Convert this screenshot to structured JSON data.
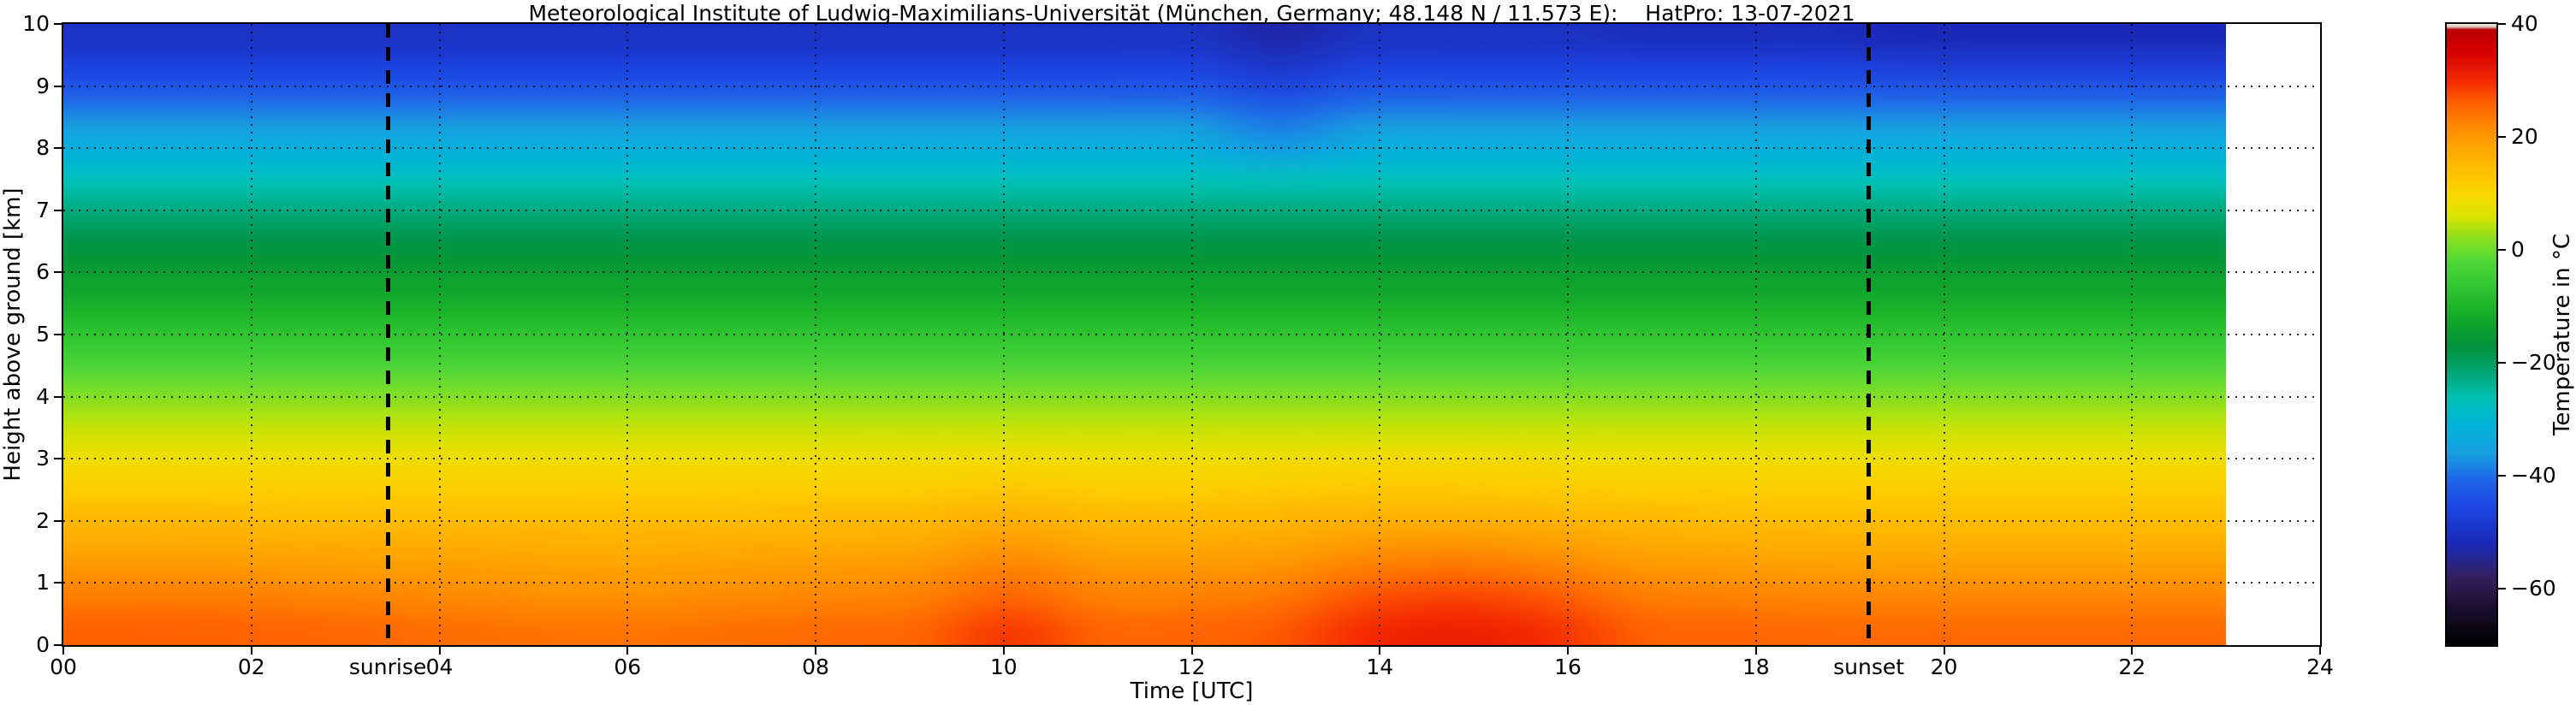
{
  "chart_data": {
    "type": "heatmap",
    "title": "Meteorological Institute of Ludwig-Maximilians-Universität (München, Germany; 48.148 N / 11.573 E):    HatPro: 13-07-2021",
    "xlabel": "Time [UTC]",
    "ylabel": "Height above ground [km]",
    "colorbar_label": "Temperature in °C",
    "xlim": [
      0,
      24
    ],
    "ylim": [
      0,
      10
    ],
    "grid": true,
    "x_tick_values": [
      0,
      2,
      4,
      6,
      8,
      10,
      12,
      14,
      16,
      18,
      20,
      22,
      24
    ],
    "x_tick_labels": [
      "00",
      "02",
      "04",
      "06",
      "08",
      "10",
      "12",
      "14",
      "16",
      "18",
      "20",
      "22",
      "24"
    ],
    "y_tick_values": [
      0,
      1,
      2,
      3,
      4,
      5,
      6,
      7,
      8,
      9,
      10
    ],
    "y_tick_labels": [
      "0",
      "1",
      "2",
      "3",
      "4",
      "5",
      "6",
      "7",
      "8",
      "9",
      "10"
    ],
    "colorbar": {
      "range": [
        -70,
        40
      ],
      "tick_values": [
        40,
        20,
        0,
        -20,
        -40,
        -60
      ],
      "tick_labels": [
        "40",
        "20",
        "0",
        "−20",
        "−40",
        "−60"
      ]
    },
    "annotations": [
      {
        "label": "sunrise",
        "time_utc": 3.45
      },
      {
        "label": "sunset",
        "time_utc": 19.2
      }
    ],
    "times_utc": [
      0,
      1,
      2,
      3,
      4,
      5,
      6,
      7,
      8,
      9,
      10,
      11,
      12,
      13,
      14,
      15,
      16,
      17,
      18,
      19,
      20,
      21,
      22,
      23
    ],
    "heights_km": [
      0,
      0.5,
      1,
      1.5,
      2,
      2.5,
      3,
      3.5,
      4,
      4.5,
      5,
      5.5,
      6,
      6.5,
      7,
      7.5,
      8,
      8.5,
      9,
      9.5,
      10
    ],
    "temperature_c": [
      [
        26,
        26,
        25.5,
        25,
        24.5,
        24,
        24,
        24.5,
        25,
        25.5,
        29,
        25.5,
        25.5,
        26.5,
        30,
        31,
        29.5,
        26,
        25.5,
        25,
        25,
        25,
        25,
        25
      ],
      [
        23.5,
        23.5,
        23,
        22.5,
        22,
        21.5,
        21.5,
        22,
        22.5,
        23,
        26,
        23,
        23,
        24,
        27.5,
        28.5,
        27,
        23.5,
        23,
        22.5,
        22.5,
        22.5,
        22.5,
        22.5
      ],
      [
        20.5,
        20.5,
        20,
        19.5,
        19.5,
        19,
        19,
        19.5,
        20,
        20.5,
        23,
        20.5,
        20.5,
        21,
        23.5,
        24.5,
        23,
        20.5,
        20,
        19.5,
        19.5,
        19.5,
        19.5,
        19.5
      ],
      [
        17.5,
        17.5,
        17,
        17,
        17,
        16.5,
        16.5,
        17,
        17,
        17.5,
        19.5,
        17.5,
        17.5,
        18,
        19.5,
        20,
        19,
        17.5,
        17,
        16.5,
        16.5,
        16.5,
        16.5,
        16.5
      ],
      [
        14.5,
        14.5,
        14,
        14,
        14,
        14,
        14,
        14,
        14.5,
        14.5,
        16,
        14.5,
        14.5,
        15,
        15.5,
        15.5,
        15,
        14.5,
        14,
        14,
        14,
        14,
        14,
        14
      ],
      [
        11,
        11,
        11,
        11,
        11,
        11,
        11,
        11,
        11,
        11,
        12,
        11,
        11,
        11.5,
        12,
        12,
        11.5,
        11,
        11,
        11,
        11,
        11,
        11,
        11
      ],
      [
        8,
        8,
        8,
        8,
        8,
        8,
        8,
        8,
        8,
        8,
        8.5,
        8,
        8,
        8,
        8.5,
        8.5,
        8,
        8,
        8,
        8,
        8,
        8,
        8,
        8
      ],
      [
        4.5,
        4.5,
        4.5,
        4.5,
        4.5,
        4.5,
        4.5,
        4.5,
        4.5,
        4.5,
        4.5,
        4.5,
        4.5,
        4.5,
        4.5,
        4.5,
        4.5,
        4.5,
        4.5,
        4.5,
        4.5,
        4.5,
        4.5,
        4.5
      ],
      [
        1,
        1,
        1,
        1,
        1,
        1,
        1,
        1,
        1,
        1,
        1,
        1,
        1,
        1,
        1,
        1,
        1,
        1,
        1,
        1,
        1,
        1,
        1,
        1
      ],
      [
        -3,
        -3,
        -3,
        -3,
        -3,
        -3,
        -3,
        -3,
        -3,
        -3,
        -3,
        -3,
        -3,
        -3,
        -3,
        -3,
        -3,
        -3,
        -3,
        -3,
        -3,
        -3,
        -3,
        -3
      ],
      [
        -7,
        -7,
        -7,
        -7,
        -7,
        -7,
        -7,
        -7,
        -7,
        -7,
        -7,
        -7,
        -7,
        -7,
        -7,
        -7,
        -7,
        -7,
        -7,
        -7,
        -7,
        -7,
        -7,
        -7
      ],
      [
        -11,
        -11,
        -11,
        -11,
        -11,
        -11,
        -11,
        -11,
        -11,
        -11,
        -11,
        -11,
        -11,
        -11,
        -11,
        -11,
        -11,
        -11,
        -11,
        -11,
        -11,
        -11,
        -11,
        -11
      ],
      [
        -14,
        -14,
        -14,
        -14,
        -14,
        -14,
        -14,
        -14,
        -14,
        -14,
        -14,
        -14,
        -14,
        -14,
        -14,
        -14,
        -14,
        -14,
        -14,
        -14,
        -14,
        -14,
        -14,
        -14
      ],
      [
        -17.5,
        -17.5,
        -17.5,
        -17.5,
        -17.5,
        -17.5,
        -17.5,
        -17.5,
        -17.5,
        -17.5,
        -17.5,
        -17.5,
        -17.5,
        -17.5,
        -17.5,
        -17.5,
        -17.5,
        -17.5,
        -17.5,
        -17.5,
        -17.5,
        -17.5,
        -17.5,
        -17.5
      ],
      [
        -21.5,
        -21.5,
        -21.5,
        -21.5,
        -21.5,
        -21.5,
        -21.5,
        -21.5,
        -21.5,
        -21.5,
        -21.5,
        -21.5,
        -21.5,
        -21.5,
        -21.5,
        -21.5,
        -21.5,
        -21.5,
        -21.5,
        -21.5,
        -21.5,
        -21.5,
        -21.5,
        -21.5
      ],
      [
        -26,
        -26,
        -26,
        -26,
        -26,
        -26,
        -26,
        -26,
        -26,
        -26,
        -26,
        -26,
        -26,
        -26,
        -26,
        -26,
        -26,
        -26,
        -26,
        -26,
        -26,
        -26,
        -26,
        -26
      ],
      [
        -31,
        -31,
        -31,
        -31,
        -31,
        -31,
        -31,
        -31,
        -31,
        -31,
        -31,
        -31,
        -31,
        -34,
        -31,
        -31,
        -31,
        -31,
        -31,
        -31,
        -31,
        -31,
        -31,
        -31
      ],
      [
        -36,
        -36,
        -36,
        -36,
        -36,
        -36,
        -36,
        -36,
        -36,
        -36,
        -36,
        -36,
        -36,
        -39,
        -36,
        -36,
        -36,
        -36,
        -36,
        -36,
        -36,
        -36,
        -36,
        -36
      ],
      [
        -41,
        -41,
        -41,
        -41,
        -41,
        -41,
        -41,
        -41,
        -41,
        -41,
        -41,
        -41,
        -41,
        -44,
        -41,
        -41,
        -41,
        -41,
        -41,
        -41,
        -41,
        -41,
        -41,
        -41
      ],
      [
        -46,
        -46,
        -46,
        -46,
        -46,
        -46,
        -46,
        -46,
        -46,
        -46,
        -46,
        -46,
        -46,
        -49,
        -46,
        -46,
        -46,
        -46,
        -46,
        -46,
        -47,
        -47,
        -47,
        -47
      ],
      [
        -50,
        -50,
        -50,
        -50,
        -50,
        -50,
        -50,
        -50,
        -50,
        -50,
        -50,
        -50,
        -50,
        -53,
        -50,
        -50,
        -50,
        -51,
        -51,
        -51,
        -52,
        -52,
        -52,
        -52
      ]
    ],
    "colormap_stops": [
      [
        -70,
        "#000000"
      ],
      [
        -63,
        "#1c1030"
      ],
      [
        -58,
        "#342060"
      ],
      [
        -52,
        "#1a2ab8"
      ],
      [
        -46,
        "#1c44e0"
      ],
      [
        -41,
        "#1f64e8"
      ],
      [
        -36,
        "#18a0e0"
      ],
      [
        -31,
        "#00b4d8"
      ],
      [
        -26,
        "#00c0b0"
      ],
      [
        -21,
        "#00a26a"
      ],
      [
        -17,
        "#00923c"
      ],
      [
        -12,
        "#14a828"
      ],
      [
        -7,
        "#2fc42f"
      ],
      [
        -2,
        "#4fd83a"
      ],
      [
        2,
        "#8ce01e"
      ],
      [
        6,
        "#dce400"
      ],
      [
        10,
        "#fad800"
      ],
      [
        14,
        "#ffc000"
      ],
      [
        18,
        "#ffa800"
      ],
      [
        22,
        "#ff8800"
      ],
      [
        26,
        "#ff6000"
      ],
      [
        30,
        "#f42800"
      ],
      [
        35,
        "#d80000"
      ],
      [
        39,
        "#bc0000"
      ],
      [
        39.5,
        "#d6d0c2"
      ],
      [
        40,
        "#eae6dc"
      ]
    ]
  }
}
